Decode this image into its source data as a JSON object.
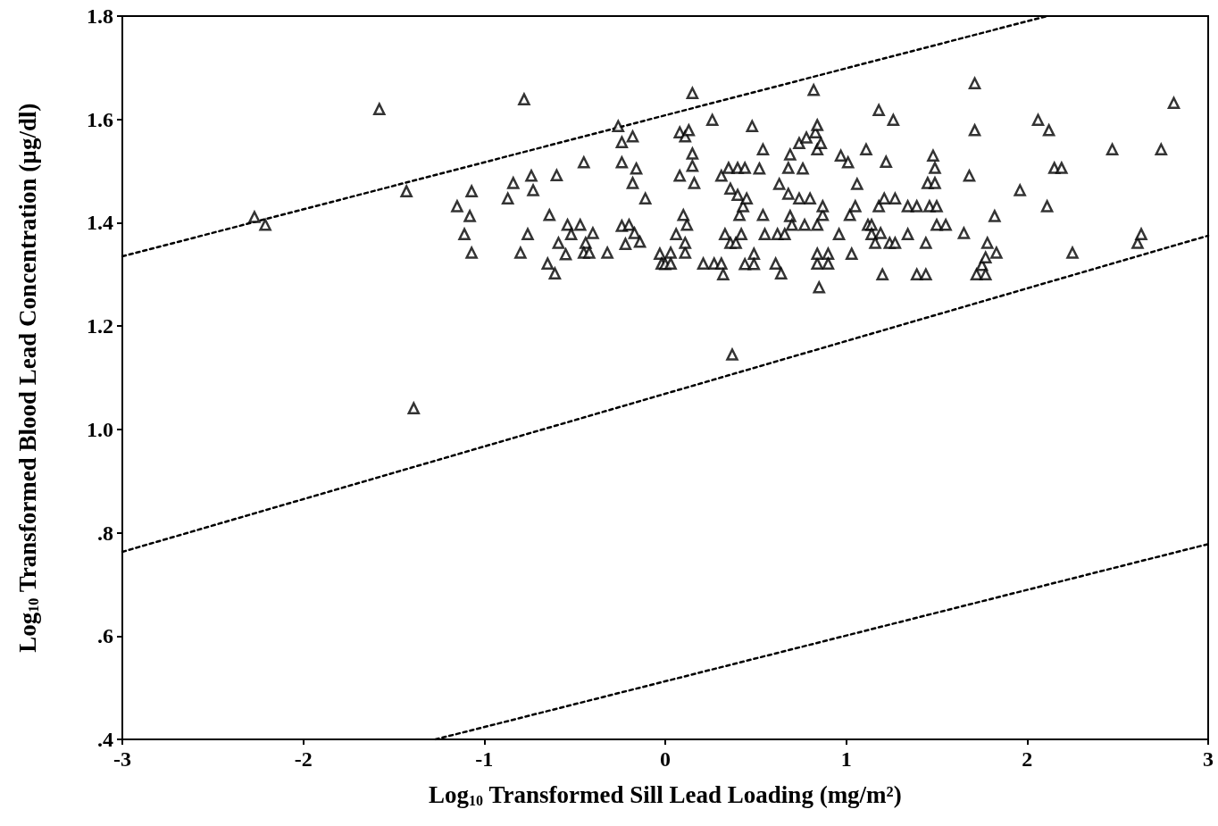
{
  "chart_data": {
    "type": "scatter",
    "xlabel": "Log$_{10}$ Transformed Sill Lead Loading (mg/m²)",
    "ylabel": "Log$_{10}$ Transformed Blood Lead Concentration (µg/dl)",
    "xlim": [
      -3,
      3
    ],
    "xticks": [
      -3,
      -2,
      -1,
      0,
      1,
      2,
      3
    ],
    "ylim": [
      0.4,
      1.8
    ],
    "yticks": [
      {
        "value": 0.4,
        "label": ".4"
      },
      {
        "value": 0.6,
        "label": ".6"
      },
      {
        "value": 0.8,
        "label": ".8"
      },
      {
        "value": 1.0,
        "label": "1.0"
      },
      1.2,
      1.4,
      1.6,
      1.8
    ],
    "grid": false,
    "marker": "triangle",
    "series": [
      {
        "color": "#000000",
        "x": [
          -2.27,
          -2.21,
          -1.58,
          -1.43,
          -1.39,
          -1.15,
          -1.11,
          -1.08,
          -1.07,
          -1.07,
          -0.87,
          -0.84,
          -0.8,
          -0.78,
          -0.76,
          -0.74,
          -0.73,
          -0.65,
          -0.64,
          -0.61,
          -0.6,
          -0.59,
          -0.55,
          -0.54,
          -0.52,
          -0.47,
          -0.44,
          -0.45,
          -0.45,
          -0.42,
          -0.4,
          -0.32,
          -0.26,
          -0.24,
          -0.24,
          -0.24,
          -0.22,
          -0.2,
          -0.18,
          -0.18,
          -0.16,
          -0.17,
          -0.14,
          -0.11,
          -0.03,
          -0.02,
          0.0,
          0.03,
          0.03,
          0.06,
          0.08,
          0.08,
          0.11,
          0.13,
          0.15,
          0.15,
          0.15,
          0.16,
          0.11,
          0.11,
          0.12,
          0.1,
          0.21,
          0.26,
          0.27,
          0.31,
          0.31,
          0.32,
          0.33,
          0.35,
          0.36,
          0.36,
          0.37,
          0.4,
          0.4,
          0.39,
          0.41,
          0.42,
          0.44,
          0.43,
          0.45,
          0.44,
          0.48,
          0.49,
          0.49,
          0.52,
          0.54,
          0.54,
          0.55,
          0.61,
          0.62,
          0.63,
          0.64,
          0.66,
          0.68,
          0.68,
          0.69,
          0.69,
          0.7,
          0.74,
          0.74,
          0.76,
          0.78,
          0.77,
          0.8,
          0.82,
          0.83,
          0.84,
          0.84,
          0.85,
          0.84,
          0.84,
          0.84,
          0.86,
          0.87,
          0.87,
          0.9,
          0.9,
          0.96,
          0.97,
          1.01,
          1.02,
          1.03,
          1.06,
          1.05,
          1.11,
          1.12,
          1.14,
          1.14,
          1.16,
          1.18,
          1.18,
          1.2,
          1.19,
          1.21,
          1.22,
          1.24,
          1.26,
          1.27,
          1.27,
          1.34,
          1.34,
          1.39,
          1.39,
          1.44,
          1.44,
          1.45,
          1.46,
          1.48,
          1.49,
          1.5,
          1.49,
          1.5,
          1.55,
          1.68,
          1.65,
          1.71,
          1.71,
          1.72,
          1.75,
          1.77,
          1.78,
          1.77,
          1.82,
          1.83,
          1.96,
          2.06,
          2.12,
          2.11,
          2.15,
          2.19,
          2.25,
          2.47,
          2.61,
          2.63,
          2.74,
          2.81
        ],
        "values": [
          1.411,
          1.396,
          1.62,
          1.461,
          1.041,
          1.432,
          1.378,
          1.413,
          1.461,
          1.342,
          1.447,
          1.477,
          1.342,
          1.639,
          1.378,
          1.491,
          1.463,
          1.321,
          1.415,
          1.302,
          1.492,
          1.361,
          1.339,
          1.396,
          1.378,
          1.396,
          1.361,
          1.517,
          1.342,
          1.342,
          1.38,
          1.342,
          1.587,
          1.394,
          1.517,
          1.556,
          1.359,
          1.396,
          1.567,
          1.477,
          1.505,
          1.38,
          1.363,
          1.447,
          1.34,
          1.321,
          1.32,
          1.321,
          1.342,
          1.378,
          1.491,
          1.575,
          1.567,
          1.579,
          1.651,
          1.51,
          1.534,
          1.477,
          1.342,
          1.361,
          1.396,
          1.415,
          1.321,
          1.599,
          1.321,
          1.321,
          1.491,
          1.3,
          1.378,
          1.506,
          1.466,
          1.361,
          1.145,
          1.506,
          1.454,
          1.361,
          1.415,
          1.378,
          1.506,
          1.432,
          1.447,
          1.32,
          1.587,
          1.34,
          1.32,
          1.505,
          1.415,
          1.542,
          1.378,
          1.321,
          1.378,
          1.475,
          1.302,
          1.378,
          1.456,
          1.506,
          1.532,
          1.413,
          1.396,
          1.554,
          1.447,
          1.505,
          1.565,
          1.396,
          1.447,
          1.657,
          1.575,
          1.589,
          1.396,
          1.275,
          1.321,
          1.34,
          1.542,
          1.554,
          1.415,
          1.432,
          1.34,
          1.321,
          1.378,
          1.53,
          1.517,
          1.415,
          1.34,
          1.475,
          1.432,
          1.542,
          1.396,
          1.396,
          1.378,
          1.361,
          1.618,
          1.432,
          1.3,
          1.38,
          1.447,
          1.518,
          1.361,
          1.599,
          1.447,
          1.361,
          1.378,
          1.432,
          1.432,
          1.3,
          1.3,
          1.361,
          1.477,
          1.432,
          1.53,
          1.506,
          1.396,
          1.477,
          1.432,
          1.396,
          1.491,
          1.38,
          1.67,
          1.579,
          1.3,
          1.318,
          1.3,
          1.361,
          1.333,
          1.413,
          1.342,
          1.463,
          1.599,
          1.579,
          1.432,
          1.506,
          1.506,
          1.342,
          1.542,
          1.361,
          1.378,
          1.542,
          1.632
        ]
      },
      {
        "type": "line",
        "color": "#000000",
        "line_style": "dashed",
        "marker": "none",
        "x": [
          -3,
          2.11
        ],
        "values": [
          1.335,
          1.8
        ]
      },
      {
        "type": "line",
        "color": "#000000",
        "line_style": "dashed",
        "marker": "none",
        "x": [
          -3,
          3
        ],
        "values": [
          0.763,
          1.375
        ]
      },
      {
        "type": "line",
        "color": "#000000",
        "line_style": "dashed",
        "marker": "none",
        "x": [
          -1.27,
          3
        ],
        "values": [
          0.4,
          0.778
        ]
      }
    ]
  }
}
